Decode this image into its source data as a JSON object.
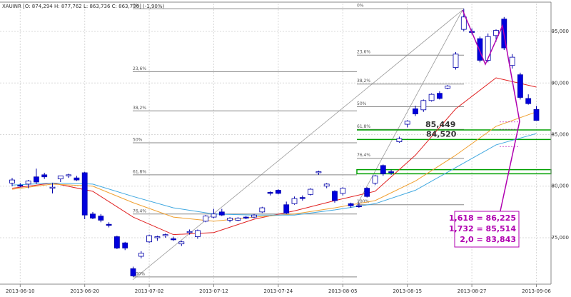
{
  "chart_data": {
    "type": "candlestick",
    "title": "XAUINR [O: 874,294 H: 877,762 L: 863,736 C: 863,736] (-1,90%)",
    "categories": [
      null,
      "2013-06-10",
      null,
      null,
      null,
      null,
      null,
      null,
      null,
      "2013-06-20",
      null,
      null,
      null,
      null,
      null,
      null,
      null,
      "2013-07-02",
      null,
      null,
      null,
      null,
      null,
      null,
      null,
      "2013-07-12",
      null,
      null,
      null,
      null,
      null,
      null,
      null,
      "2013-07-24",
      null,
      null,
      null,
      null,
      null,
      null,
      null,
      "2013-08-05",
      null,
      null,
      null,
      null,
      null,
      null,
      null,
      "2013-08-15",
      null,
      null,
      null,
      null,
      null,
      null,
      null,
      "2013-08-27",
      null,
      null,
      null,
      null,
      null,
      null,
      null,
      "2013-09-06"
    ],
    "open": [
      80300,
      80100,
      80200,
      80900,
      81100,
      79800,
      80700,
      81000,
      80800,
      81300,
      77300,
      77100,
      76300,
      75100,
      74500,
      72000,
      73200,
      74600,
      75000,
      75200,
      74900,
      74400,
      75500,
      75100,
      76600,
      77000,
      77500,
      76700,
      76700,
      77000,
      77000,
      77500,
      79400,
      79600,
      78200,
      78300,
      78900,
      79200,
      81300,
      80000,
      79500,
      79300,
      78300,
      78100,
      79800,
      80300,
      82000,
      81400,
      84300,
      86000,
      87500,
      87400,
      88300,
      89000,
      89500,
      91500,
      95200,
      95000,
      94300,
      92200,
      94600,
      96200,
      91700,
      90800,
      88500,
      87429
    ],
    "high": [
      80800,
      80300,
      80600,
      81700,
      81300,
      80300,
      81000,
      81200,
      81000,
      81400,
      77500,
      77300,
      76500,
      75200,
      74600,
      72200,
      73700,
      75300,
      75200,
      75400,
      75100,
      74700,
      75800,
      75800,
      77200,
      77800,
      77800,
      77000,
      77000,
      77100,
      77300,
      78000,
      79500,
      79700,
      78500,
      79000,
      79100,
      79800,
      81500,
      80300,
      79600,
      79900,
      78400,
      78400,
      79900,
      81100,
      82100,
      81600,
      84800,
      86400,
      87800,
      88400,
      89000,
      89200,
      89800,
      93000,
      97200,
      95300,
      94500,
      94800,
      95200,
      96400,
      92800,
      91000,
      88900,
      87776
    ],
    "low": [
      80000,
      79900,
      79800,
      80200,
      80700,
      79300,
      80400,
      80800,
      80500,
      76800,
      76800,
      76500,
      76000,
      73900,
      73800,
      71200,
      73000,
      74500,
      74700,
      75000,
      74700,
      74200,
      75300,
      74900,
      76500,
      76900,
      77100,
      76500,
      76600,
      76800,
      76900,
      77400,
      79100,
      79200,
      77300,
      78200,
      78600,
      79100,
      81100,
      79800,
      78400,
      79100,
      77900,
      77900,
      78900,
      80100,
      81000,
      81100,
      84200,
      85700,
      86800,
      87200,
      88200,
      88400,
      89400,
      91300,
      95000,
      94700,
      92000,
      92000,
      94000,
      93200,
      91400,
      88400,
      87900,
      86374
    ],
    "close": [
      80600,
      80000,
      80500,
      80400,
      80900,
      79900,
      81000,
      81100,
      80600,
      77200,
      76900,
      76700,
      76200,
      74000,
      74000,
      71300,
      73500,
      75200,
      75100,
      75300,
      74800,
      74600,
      75600,
      75700,
      77100,
      77300,
      77200,
      76900,
      76900,
      76900,
      77200,
      77900,
      79300,
      79300,
      77400,
      78800,
      78800,
      79700,
      81400,
      80200,
      78600,
      79800,
      78100,
      78000,
      79000,
      81000,
      81200,
      81300,
      84600,
      86300,
      87000,
      88300,
      88900,
      88500,
      89700,
      92800,
      96400,
      94900,
      92200,
      94500,
      95100,
      93400,
      92500,
      88600,
      88000,
      86374
    ],
    "up_color": "#ffffff",
    "down_color": "#0000dd",
    "border_color": "#0000aa",
    "moving_averages": [
      {
        "color": "#e02020",
        "x": [
          0,
          5,
          10,
          15,
          20,
          25,
          30,
          35,
          40,
          45,
          50,
          55,
          60,
          65
        ],
        "values": [
          79800,
          80300,
          79500,
          77000,
          75300,
          75500,
          76800,
          77600,
          78600,
          79500,
          83000,
          87500,
          90500,
          89600
        ]
      },
      {
        "color": "#f0a030",
        "x": [
          0,
          5,
          10,
          15,
          20,
          25,
          30,
          35,
          40,
          45,
          50,
          55,
          60,
          65
        ],
        "values": [
          79700,
          80200,
          80000,
          78400,
          77000,
          76600,
          77000,
          77300,
          77900,
          78600,
          80500,
          83000,
          85800,
          87200
        ]
      },
      {
        "color": "#40a8e0",
        "x": [
          0,
          5,
          10,
          15,
          20,
          25,
          30,
          35,
          40,
          45,
          50,
          55,
          60,
          65
        ],
        "values": [
          80100,
          80300,
          80200,
          79000,
          77900,
          77300,
          77200,
          77200,
          77700,
          78300,
          79600,
          81800,
          84000,
          85100
        ]
      }
    ],
    "fibonacci": [
      {
        "levels": [
          {
            "label": "0%",
            "value": 97200
          },
          {
            "label": "23,6%",
            "value": 91100
          },
          {
            "label": "38,2%",
            "value": 87300
          },
          {
            "label": "50%",
            "value": 84200
          },
          {
            "label": "61,8%",
            "value": 81100
          },
          {
            "label": "76,4%",
            "value": 77300
          },
          {
            "label": "100%",
            "value": 71200
          }
        ]
      },
      {
        "levels": [
          {
            "label": "0%",
            "value": 97200
          },
          {
            "label": "23,6%",
            "value": 92700
          },
          {
            "label": "38,2%",
            "value": 89900
          },
          {
            "label": "50%",
            "value": 87700
          },
          {
            "label": "61,8%",
            "value": 85500
          },
          {
            "label": "76,4%",
            "value": 82700
          },
          {
            "label": "100%",
            "value": 78200
          }
        ]
      }
    ],
    "targets": {
      "values": [
        85449,
        84520
      ],
      "value_labels": [
        "85,449",
        "84,520"
      ],
      "color": "#00a000"
    },
    "zone": [
      81200,
      81600
    ],
    "extensions": {
      "values": [
        86225,
        85514,
        83843
      ],
      "value_labels": [
        "1,618 = 86,225",
        "1,732 = 85,514",
        "2,0 = 83,843"
      ],
      "color": "#b000b0"
    },
    "ylim": [
      70500,
      97700
    ],
    "yticks": [
      {
        "value": 75000,
        "label": "75,000"
      },
      {
        "value": 80000,
        "label": "80,000"
      },
      {
        "value": 85000,
        "label": "85,000"
      },
      {
        "value": 90000,
        "label": "90,000"
      },
      {
        "value": 95000,
        "label": "95,000"
      }
    ],
    "grid": true
  }
}
